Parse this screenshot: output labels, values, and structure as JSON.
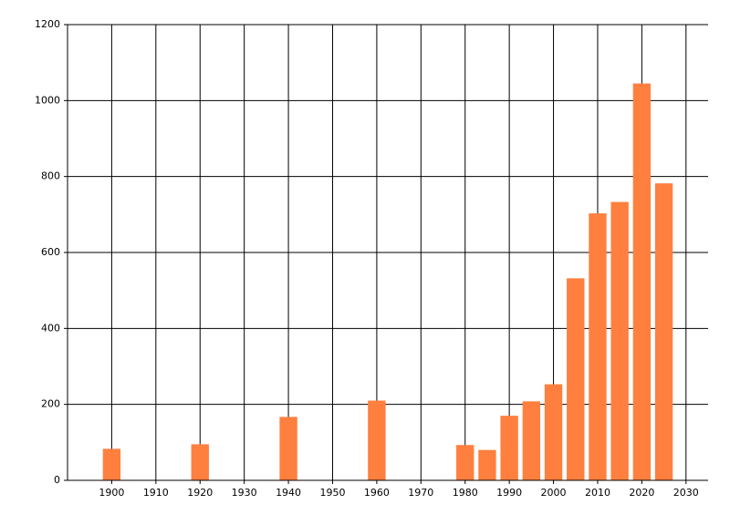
{
  "chart_data": {
    "type": "bar",
    "x": [
      1900,
      1920,
      1940,
      1960,
      1980,
      1985,
      1990,
      1995,
      2000,
      2005,
      2010,
      2015,
      2020,
      2025
    ],
    "values": [
      83,
      95,
      167,
      210,
      93,
      80,
      170,
      208,
      253,
      532,
      703,
      733,
      1045,
      782
    ],
    "color": "#ff7f3f",
    "xlim": [
      1890,
      2035
    ],
    "xticks": [
      1900,
      1910,
      1920,
      1930,
      1940,
      1950,
      1960,
      1970,
      1980,
      1990,
      2000,
      2010,
      2020,
      2030
    ],
    "ylim": [
      0,
      1200
    ],
    "yticks": [
      0,
      200,
      400,
      600,
      800,
      1000,
      1200
    ],
    "bar_width": 4,
    "grid": true
  }
}
